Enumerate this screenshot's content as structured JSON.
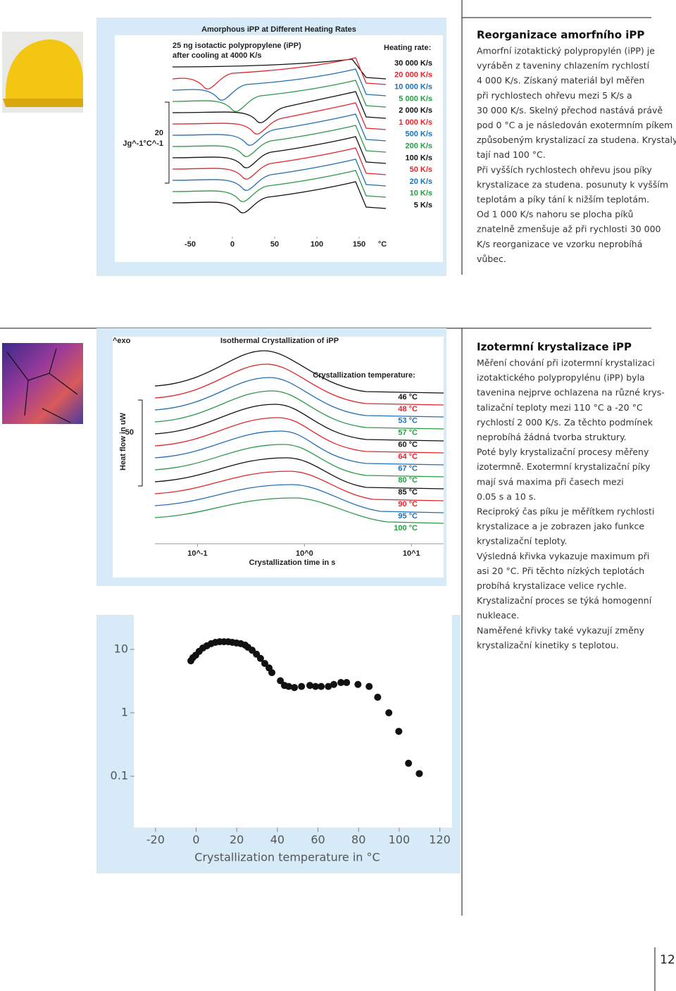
{
  "sections": [
    {
      "heading": "Reorganizace amorfního iPP",
      "lines": [
        "Amorfní izotaktický polypropylén (iPP) je",
        "vyráběn z taveniny chlazením rychlostí",
        "4 000 K/s. Získaný materiál byl měřen",
        "při rychlostech ohřevu mezi 5 K/s a",
        "30 000 K/s. Skelný přechod nastává právě",
        "pod 0 °C a je následován exotermním píkem",
        "způsobeným krystalizací za studena. Krystaly",
        "tají nad 100 °C.",
        "Při vyšších rychlostech ohřevu jsou píky",
        "krystalizace za studena. posunuty k vyšším",
        "teplotám a píky tání k nižším teplotám.",
        "Od 1 000 K/s nahoru se plocha píků",
        "znatelně zmenšuje až při rychlosti  30 000",
        "K/s reorganizace ve vzorku neprobíhá",
        "vůbec."
      ]
    },
    {
      "heading": "Izotermní krystalizace iPP",
      "lines": [
        "Měření chování při izotermní krystalizaci",
        "izotaktického polypropylénu (iPP) byla",
        "tavenina nejprve ochlazena na různé krys-",
        "talizační teploty mezi 110 °C a -20 °C",
        "rychlostí 2 000 K/s. Za těchto podmínek",
        "neprobíhá žádná tvorba struktury.",
        "Poté byly krystalizační procesy měřeny",
        "izotermně. Exotermní krystalizační píky",
        "mají svá maxima při časech mezi",
        "0.05 s a 10 s.",
        "Reciproký čas píku je měřítkem rychlosti",
        "krystalizace a je zobrazen jako funkce",
        "krystalizační teploty.",
        "Výsledná křivka vykazuje maximum při",
        "asi 20 °C. Při těchto nízkých teplotách",
        "probíhá krystalizace velice rychle.",
        "Krystalizační proces se týká homogenní",
        "nukleace.",
        "Naměřené křivky také vykazují změny",
        "krystalizační kinetiky s teplotou."
      ]
    }
  ],
  "page_number": "12",
  "chart_data": [
    {
      "type": "line",
      "title": "Amorphous iPP at Different Heating Rates",
      "annotation": [
        "25 ng isotactic polypropylene (iPP)",
        "after cooling at 4000 K/s"
      ],
      "legend_title": "Heating rate:",
      "scale_bar": 20,
      "y_unit": "Jg^-1°C^-1",
      "x_unit": "°C",
      "xlim": [
        -75,
        190
      ],
      "xticks": [
        -50,
        0,
        50,
        100,
        150
      ],
      "series": [
        {
          "name": "30 000 K/s",
          "color": "#111111"
        },
        {
          "name": "20 000 K/s",
          "color": "#e0262a"
        },
        {
          "name": "10 000 K/s",
          "color": "#1f6fb5"
        },
        {
          "name": "5 000 K/s",
          "color": "#2a9a45"
        },
        {
          "name": "2 000 K/s",
          "color": "#111111"
        },
        {
          "name": "1 000 K/s",
          "color": "#e0262a"
        },
        {
          "name": "500 K/s",
          "color": "#1f6fb5"
        },
        {
          "name": "200 K/s",
          "color": "#2a9a45"
        },
        {
          "name": "100 K/s",
          "color": "#111111"
        },
        {
          "name": "50 K/s",
          "color": "#e0262a"
        },
        {
          "name": "20 K/s",
          "color": "#1f6fb5"
        },
        {
          "name": "10 K/s",
          "color": "#2a9a45"
        },
        {
          "name": "5 K/s",
          "color": "#111111"
        }
      ]
    },
    {
      "type": "line",
      "title": "Isothermal Crystallization of iPP",
      "y_marker": "^exo",
      "legend_title": "Crystallization temperature:",
      "ylabel": "Heat flow in uW",
      "scale_bar": 50,
      "xlabel": "Crystallization time in s",
      "xscale": "log",
      "xlim": [
        0.04,
        20
      ],
      "xticks": [
        {
          "value": 0.1,
          "label": "10^-1"
        },
        {
          "value": 1,
          "label": "10^0"
        },
        {
          "value": 10,
          "label": "10^1"
        }
      ],
      "series": [
        {
          "name": "46 °C",
          "color": "#111111"
        },
        {
          "name": "48 °C",
          "color": "#e0262a"
        },
        {
          "name": "53 °C",
          "color": "#1f6fb5"
        },
        {
          "name": "57 °C",
          "color": "#2a9a45"
        },
        {
          "name": "60 °C",
          "color": "#111111"
        },
        {
          "name": "64 °C",
          "color": "#e0262a"
        },
        {
          "name": "67 °C",
          "color": "#1f6fb5"
        },
        {
          "name": "80 °C",
          "color": "#2a9a45"
        },
        {
          "name": "85 °C",
          "color": "#111111"
        },
        {
          "name": "90 °C",
          "color": "#e0262a"
        },
        {
          "name": "95 °C",
          "color": "#1f6fb5"
        },
        {
          "name": "100 °C",
          "color": "#2a9a45"
        }
      ]
    },
    {
      "type": "scatter",
      "xlabel": "Crystallization temperature in °C",
      "xlim": [
        -30,
        125
      ],
      "xticks": [
        -20,
        0,
        20,
        40,
        60,
        80,
        100,
        120
      ],
      "yscale": "log",
      "ylim": [
        0.02,
        30
      ],
      "yticks": [
        10,
        1,
        0.1
      ],
      "color": "#111111",
      "x": [
        -2.6,
        -1.6,
        -0.2,
        1.5,
        3.3,
        5.3,
        7.4,
        9.5,
        11.6,
        13.7,
        15.8,
        17.8,
        19.9,
        22,
        24.1,
        25.5,
        27.6,
        29.7,
        31.7,
        33.8,
        35.9,
        37.3,
        41.5,
        43.5,
        45.6,
        48.4,
        51.9,
        56,
        58.8,
        61.6,
        65.1,
        67.8,
        71.3,
        74.1,
        79.7,
        85.2,
        89.4,
        94.9,
        99.8,
        104.6,
        109.9
      ],
      "values": [
        6.6,
        7.4,
        8.1,
        9.3,
        10.5,
        11.4,
        12.3,
        12.9,
        13.2,
        13.2,
        13.2,
        12.9,
        12.6,
        12.3,
        11.7,
        10.8,
        9.7,
        8.4,
        7.2,
        6.0,
        5.1,
        4.3,
        3.2,
        2.7,
        2.6,
        2.5,
        2.6,
        2.7,
        2.6,
        2.6,
        2.6,
        2.8,
        3.0,
        3.0,
        2.8,
        2.6,
        1.76,
        1.0,
        0.51,
        0.16,
        0.11
      ]
    }
  ]
}
